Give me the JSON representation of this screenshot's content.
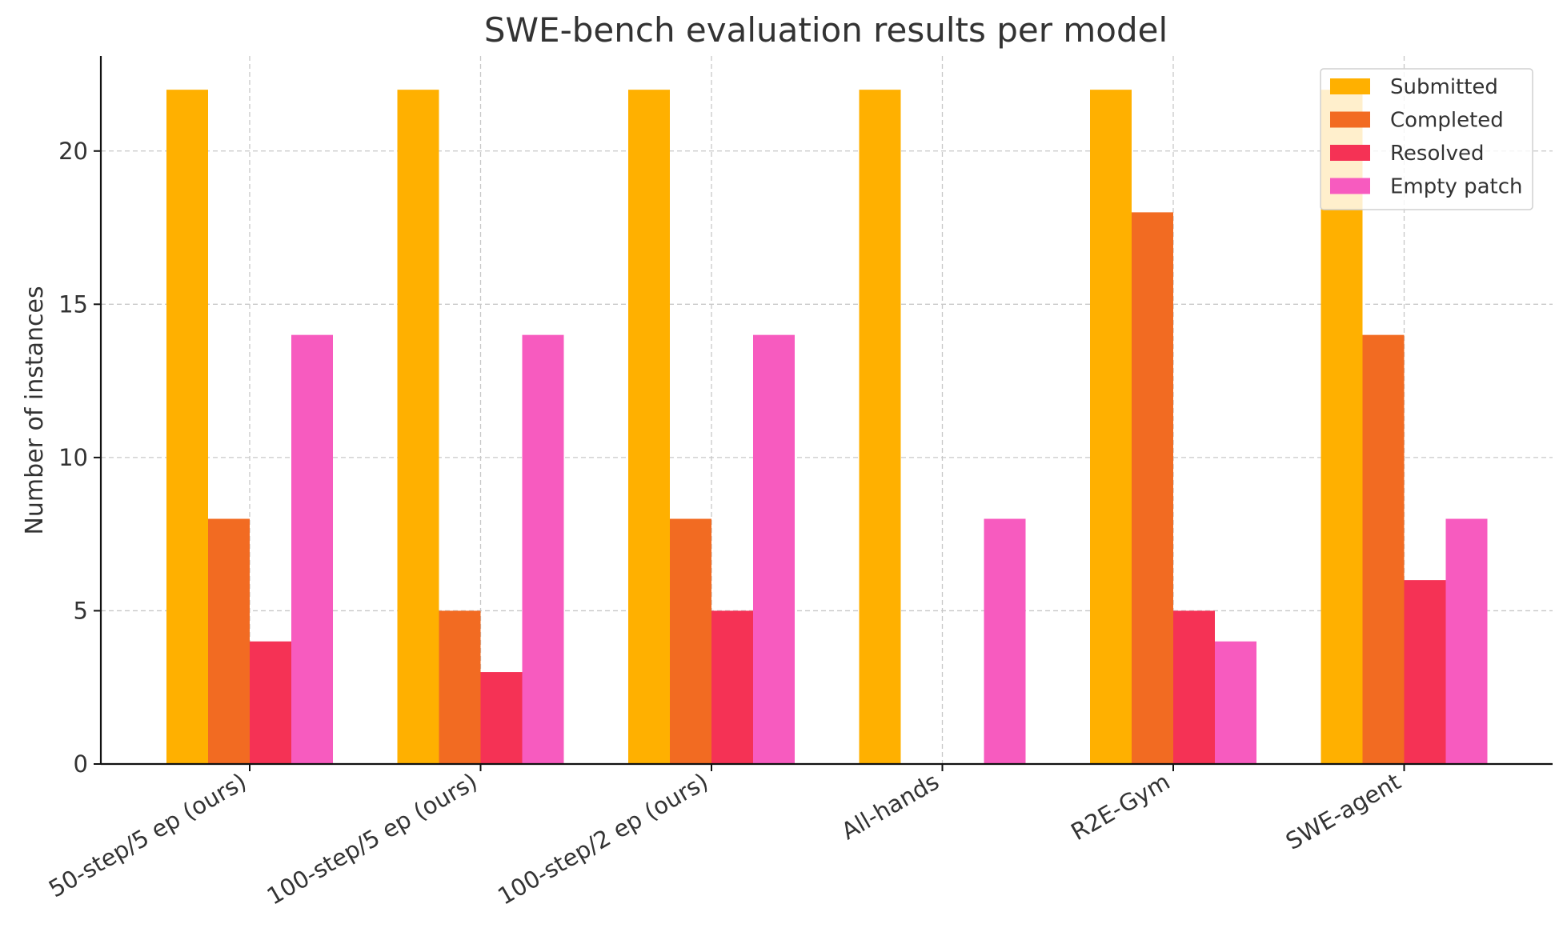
{
  "chart_data": {
    "type": "bar",
    "title": "SWE-bench evaluation results per model",
    "xlabel": "",
    "ylabel": "Number of instances",
    "categories": [
      "50-step/5 ep (ours)",
      "100-step/5 ep (ours)",
      "100-step/2 ep (ours)",
      "All-hands",
      "R2E-Gym",
      "SWE-agent"
    ],
    "series": [
      {
        "name": "Submitted",
        "color": "#ffb000",
        "values": [
          22,
          22,
          22,
          22,
          22,
          22
        ]
      },
      {
        "name": "Completed",
        "color": "#f26b22",
        "values": [
          8,
          5,
          8,
          0,
          18,
          14
        ]
      },
      {
        "name": "Resolved",
        "color": "#f53255",
        "values": [
          4,
          3,
          5,
          0,
          5,
          6
        ]
      },
      {
        "name": "Empty patch",
        "color": "#f75bbf",
        "values": [
          14,
          14,
          14,
          8,
          4,
          8
        ]
      }
    ],
    "ylim": [
      0,
      23.1
    ],
    "yticks": [
      0,
      5,
      10,
      15,
      20
    ],
    "grid": true,
    "legend_position": "top-right"
  }
}
